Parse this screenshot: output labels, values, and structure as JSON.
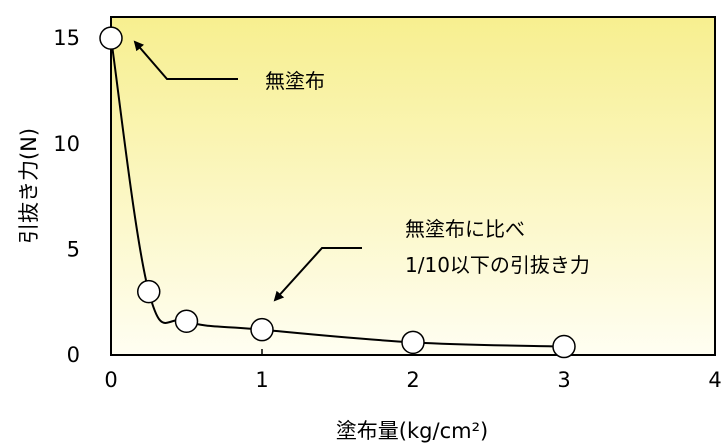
{
  "chart_data": {
    "type": "line",
    "xlabel": "塗布量(kg/cm²)",
    "ylabel": "引抜き力(N)",
    "xlim": [
      0,
      4
    ],
    "ylim": [
      0,
      16
    ],
    "xticks": [
      "0",
      "1",
      "2",
      "3",
      "4"
    ],
    "yticks": [
      "0",
      "5",
      "10",
      "15"
    ],
    "grid": false,
    "series": [
      {
        "x": [
          0,
          0.25,
          0.5,
          1,
          2,
          3
        ],
        "y": [
          15,
          3.0,
          1.6,
          1.2,
          0.6,
          0.4
        ],
        "marker": "open-circle",
        "line": "smooth"
      }
    ],
    "annotations": [
      {
        "text": "無塗布"
      },
      {
        "text": "無塗布に比べ"
      },
      {
        "text": "1/10以下の引抜き力"
      }
    ],
    "colors": {
      "plot_bg_top": "#f7ef8f",
      "plot_bg_bottom": "#fffef2",
      "line": "#000000",
      "marker_fill": "#ffffff"
    }
  }
}
